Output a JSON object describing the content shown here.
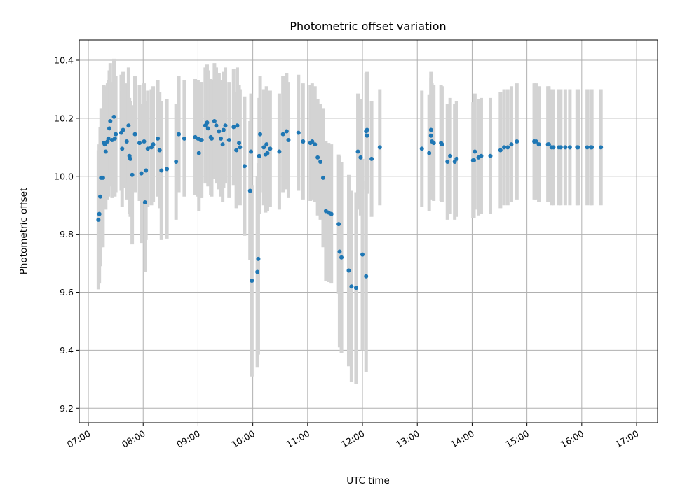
{
  "chart_data": {
    "type": "scatter",
    "title": "Photometric offset variation",
    "xlabel": "UTC time",
    "ylabel": "Photometric offset",
    "x_is_time": true,
    "xlim": [
      "06:50",
      "17:23"
    ],
    "ylim": [
      9.15,
      10.47
    ],
    "x_ticks": [
      "07:00",
      "08:00",
      "09:00",
      "10:00",
      "11:00",
      "12:00",
      "13:00",
      "14:00",
      "15:00",
      "16:00",
      "17:00"
    ],
    "y_ticks": [
      "9.2",
      "9.4",
      "9.6",
      "9.8",
      "10.0",
      "10.2",
      "10.4"
    ],
    "grid": true,
    "legend": "none",
    "marker_color": "#1f77b4",
    "errorbar_color": "#d3d3d3",
    "series": [
      {
        "x": [
          "07:11",
          "07:12",
          "07:13",
          "07:14",
          "07:16",
          "07:17",
          "07:18",
          "07:19",
          "07:21",
          "07:22",
          "07:23",
          "07:24",
          "07:26",
          "07:28",
          "07:29",
          "07:30",
          "07:36",
          "07:37",
          "07:38",
          "07:42",
          "07:44",
          "07:45",
          "07:46",
          "07:48",
          "07:51",
          "07:56",
          "07:58",
          "08:01",
          "08:02",
          "08:03",
          "08:05",
          "08:09",
          "08:11",
          "08:16",
          "08:18",
          "08:20",
          "08:26",
          "08:36",
          "08:39",
          "08:45",
          "08:57",
          "09:00",
          "09:01",
          "09:03",
          "09:04",
          "09:08",
          "09:10",
          "09:11",
          "09:14",
          "09:15",
          "09:18",
          "09:20",
          "09:23",
          "09:25",
          "09:27",
          "09:28",
          "09:30",
          "09:34",
          "09:39",
          "09:42",
          "09:43",
          "09:45",
          "09:46",
          "09:51",
          "09:57",
          "09:58",
          "09:59",
          "10:05",
          "10:06",
          "10:07",
          "10:08",
          "10:12",
          "10:14",
          "10:15",
          "10:16",
          "10:19",
          "10:29",
          "10:33",
          "10:37",
          "10:39",
          "10:50",
          "10:55",
          "11:03",
          "11:05",
          "11:08",
          "11:11",
          "11:14",
          "11:17",
          "11:20",
          "11:23",
          "11:26",
          "11:34",
          "11:35",
          "11:37",
          "11:45",
          "11:48",
          "11:53",
          "11:55",
          "11:58",
          "12:00",
          "12:04",
          "12:04",
          "12:05",
          "12:05",
          "12:10",
          "12:19",
          "13:05",
          "13:13",
          "13:15",
          "13:15",
          "13:16",
          "13:18",
          "13:26",
          "13:27",
          "13:33",
          "13:36",
          "13:41",
          "13:43",
          "14:01",
          "14:02",
          "14:03",
          "14:07",
          "14:10",
          "14:20",
          "14:31",
          "14:35",
          "14:39",
          "14:43",
          "14:49",
          "15:08",
          "15:10",
          "15:13",
          "15:23",
          "15:24",
          "15:27",
          "15:29",
          "15:35",
          "15:37",
          "15:42",
          "15:47",
          "15:55",
          "15:56",
          "16:06",
          "16:10",
          "16:11",
          "16:21"
        ],
        "y": [
          9.85,
          9.87,
          9.93,
          9.995,
          9.995,
          10.115,
          10.11,
          10.085,
          10.12,
          10.13,
          10.165,
          10.19,
          10.125,
          10.205,
          10.13,
          10.145,
          10.15,
          10.095,
          10.16,
          10.12,
          10.175,
          10.07,
          10.06,
          10.005,
          10.145,
          10.115,
          10.01,
          10.12,
          9.91,
          10.02,
          10.095,
          10.1,
          10.11,
          10.13,
          10.09,
          10.02,
          10.025,
          10.05,
          10.145,
          10.13,
          10.135,
          10.13,
          10.08,
          10.125,
          10.125,
          10.175,
          10.185,
          10.165,
          10.135,
          10.13,
          10.19,
          10.175,
          10.155,
          10.13,
          10.11,
          10.16,
          10.175,
          10.125,
          10.17,
          10.09,
          10.175,
          10.115,
          10.1,
          10.035,
          9.95,
          10.085,
          9.64,
          9.67,
          9.715,
          10.07,
          10.145,
          10.1,
          10.075,
          10.11,
          10.08,
          10.095,
          10.085,
          10.145,
          10.155,
          10.125,
          10.15,
          10.12,
          10.115,
          10.12,
          10.11,
          10.065,
          10.05,
          9.995,
          9.88,
          9.875,
          9.87,
          9.835,
          9.74,
          9.72,
          9.675,
          9.62,
          9.615,
          10.085,
          10.065,
          9.73,
          9.655,
          10.155,
          10.14,
          10.16,
          10.06,
          10.1,
          10.095,
          10.08,
          10.14,
          10.16,
          10.12,
          10.115,
          10.115,
          10.11,
          10.05,
          10.07,
          10.05,
          10.06,
          10.055,
          10.055,
          10.085,
          10.065,
          10.07,
          10.07,
          10.09,
          10.1,
          10.1,
          10.11,
          10.12,
          10.12,
          10.12,
          10.11,
          10.11,
          10.11,
          10.1,
          10.1,
          10.1,
          10.1,
          10.1,
          10.1,
          10.1,
          10.1,
          10.1,
          10.1,
          10.1,
          10.1
        ]
      }
    ]
  }
}
